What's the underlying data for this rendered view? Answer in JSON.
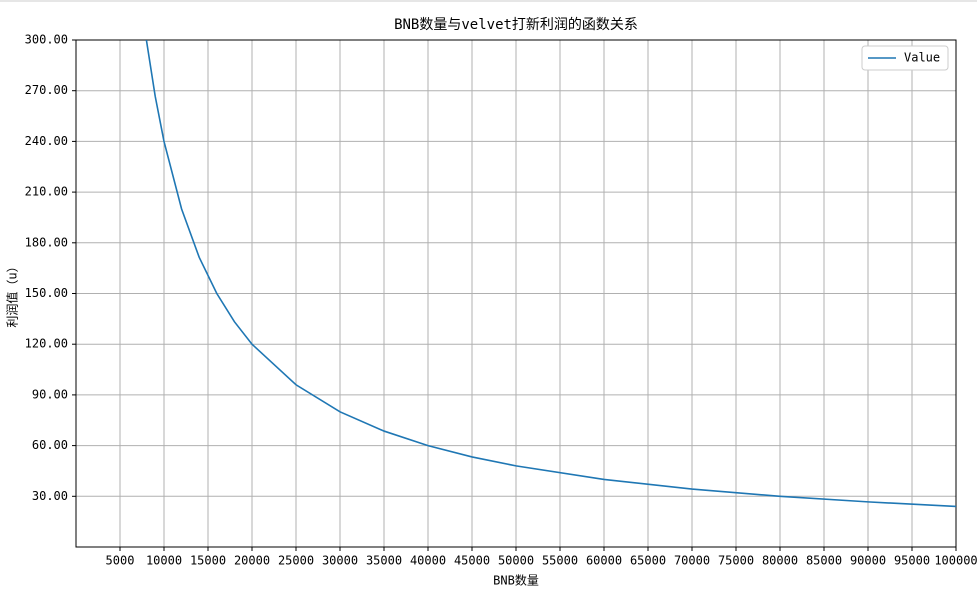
{
  "chart_data": {
    "type": "line",
    "title": "BNB数量与velvet打新利润的函数关系",
    "x_label": "BNB数量",
    "y_label": "利润值（u）",
    "x": [
      8000,
      9000,
      10000,
      12000,
      14000,
      16000,
      18000,
      20000,
      25000,
      30000,
      35000,
      40000,
      45000,
      50000,
      60000,
      70000,
      80000,
      90000,
      100000
    ],
    "series": [
      {
        "name": "Value",
        "color": "#1f77b4",
        "values": [
          300,
          266.7,
          240,
          200,
          171.4,
          150,
          133.3,
          120,
          96,
          80,
          68.6,
          60,
          53.3,
          48,
          40,
          34.3,
          30,
          26.7,
          24
        ]
      }
    ],
    "xlim": [
      0,
      100000
    ],
    "xticks": [
      5000,
      10000,
      15000,
      20000,
      25000,
      30000,
      35000,
      40000,
      45000,
      50000,
      55000,
      60000,
      65000,
      70000,
      75000,
      80000,
      85000,
      90000,
      95000,
      100000
    ],
    "ylim": [
      0,
      300
    ],
    "yticks": [
      {
        "value": 30,
        "label": "30.00"
      },
      {
        "value": 60,
        "label": "60.00"
      },
      {
        "value": 90,
        "label": "90.00"
      },
      {
        "value": 120,
        "label": "120.00"
      },
      {
        "value": 150,
        "label": "150.00"
      },
      {
        "value": 180,
        "label": "180.00"
      },
      {
        "value": 210,
        "label": "210.00"
      },
      {
        "value": 240,
        "label": "240.00"
      },
      {
        "value": 270,
        "label": "270.00"
      },
      {
        "value": 300,
        "label": "300.00"
      }
    ],
    "grid": true,
    "legend": "upper right"
  }
}
